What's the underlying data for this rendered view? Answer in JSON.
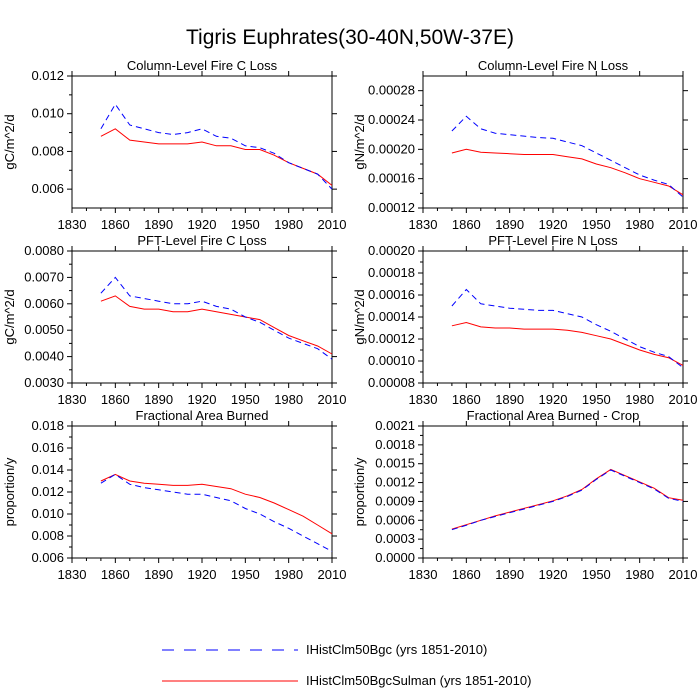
{
  "figure": {
    "title": "Tigris Euphrates(30-40N,50W-37E)"
  },
  "legend": {
    "entries": [
      {
        "label": "IHistClm50Bgc (yrs 1851-2010)",
        "color": "#0000ff",
        "dash": "dashed"
      },
      {
        "label": "IHistClm50BgcSulman (yrs 1851-2010)",
        "color": "#ff0000",
        "dash": "solid"
      }
    ]
  },
  "chart_data": [
    {
      "type": "line",
      "title": "Column-Level Fire C Loss",
      "ylabel": "gC/m^2/d",
      "xlim": [
        1830,
        2010
      ],
      "ylim": [
        0.005,
        0.012
      ],
      "xticks": [
        "1830",
        "1860",
        "1890",
        "1920",
        "1950",
        "1980",
        "2010"
      ],
      "yticks": [
        "0.006",
        "0.008",
        "0.010",
        "0.012"
      ],
      "series": [
        {
          "name": "IHistClm50Bgc (yrs 1851-2010)",
          "color": "#0000ff",
          "x": [
            1850,
            1860,
            1870,
            1880,
            1890,
            1900,
            1910,
            1920,
            1930,
            1940,
            1950,
            1960,
            1970,
            1980,
            1990,
            2000,
            2010
          ],
          "y": [
            0.0092,
            0.0105,
            0.0094,
            0.0092,
            0.009,
            0.0089,
            0.009,
            0.0092,
            0.0088,
            0.0087,
            0.0083,
            0.0082,
            0.0079,
            0.0074,
            0.0071,
            0.0068,
            0.006
          ]
        },
        {
          "name": "IHistClm50BgcSulman (yrs 1851-2010)",
          "color": "#ff0000",
          "x": [
            1850,
            1860,
            1870,
            1880,
            1890,
            1900,
            1910,
            1920,
            1930,
            1940,
            1950,
            1960,
            1970,
            1980,
            1990,
            2000,
            2010
          ],
          "y": [
            0.0088,
            0.0092,
            0.0086,
            0.0085,
            0.0084,
            0.0084,
            0.0084,
            0.0085,
            0.0083,
            0.0083,
            0.0081,
            0.0081,
            0.0078,
            0.0074,
            0.0071,
            0.0068,
            0.0062
          ]
        }
      ]
    },
    {
      "type": "line",
      "title": "Column-Level Fire N Loss",
      "ylabel": "gN/m^2/d",
      "xlim": [
        1830,
        2010
      ],
      "ylim": [
        0.00012,
        0.0003
      ],
      "xticks": [
        "1830",
        "1860",
        "1890",
        "1920",
        "1950",
        "1980",
        "2010"
      ],
      "yticks": [
        "0.00012",
        "0.00016",
        "0.00020",
        "0.00024",
        "0.00028"
      ],
      "series": [
        {
          "name": "IHistClm50Bgc (yrs 1851-2010)",
          "color": "#0000ff",
          "x": [
            1850,
            1860,
            1870,
            1880,
            1890,
            1900,
            1910,
            1920,
            1930,
            1940,
            1950,
            1960,
            1970,
            1980,
            1990,
            2000,
            2010
          ],
          "y": [
            0.000225,
            0.000245,
            0.000228,
            0.000222,
            0.00022,
            0.000218,
            0.000216,
            0.000215,
            0.00021,
            0.000205,
            0.000195,
            0.000185,
            0.000175,
            0.000165,
            0.000158,
            0.000152,
            0.000135
          ]
        },
        {
          "name": "IHistClm50BgcSulman (yrs 1851-2010)",
          "color": "#ff0000",
          "x": [
            1850,
            1860,
            1870,
            1880,
            1890,
            1900,
            1910,
            1920,
            1930,
            1940,
            1950,
            1960,
            1970,
            1980,
            1990,
            2000,
            2010
          ],
          "y": [
            0.000195,
            0.0002,
            0.000196,
            0.000195,
            0.000194,
            0.000193,
            0.000193,
            0.000193,
            0.00019,
            0.000187,
            0.00018,
            0.000175,
            0.000168,
            0.00016,
            0.000155,
            0.00015,
            0.000138
          ]
        }
      ]
    },
    {
      "type": "line",
      "title": "PFT-Level Fire C Loss",
      "ylabel": "gC/m^2/d",
      "xlim": [
        1830,
        2010
      ],
      "ylim": [
        0.003,
        0.008
      ],
      "xticks": [
        "1830",
        "1860",
        "1890",
        "1920",
        "1950",
        "1980",
        "2010"
      ],
      "yticks": [
        "0.0030",
        "0.0040",
        "0.0050",
        "0.0060",
        "0.0070",
        "0.0080"
      ],
      "series": [
        {
          "name": "IHistClm50Bgc (yrs 1851-2010)",
          "color": "#0000ff",
          "x": [
            1850,
            1860,
            1870,
            1880,
            1890,
            1900,
            1910,
            1920,
            1930,
            1940,
            1950,
            1960,
            1970,
            1980,
            1990,
            2000,
            2010
          ],
          "y": [
            0.0064,
            0.007,
            0.0063,
            0.0062,
            0.0061,
            0.006,
            0.006,
            0.0061,
            0.0059,
            0.0058,
            0.0055,
            0.0053,
            0.005,
            0.0047,
            0.0045,
            0.0043,
            0.0039
          ]
        },
        {
          "name": "IHistClm50BgcSulman (yrs 1851-2010)",
          "color": "#ff0000",
          "x": [
            1850,
            1860,
            1870,
            1880,
            1890,
            1900,
            1910,
            1920,
            1930,
            1940,
            1950,
            1960,
            1970,
            1980,
            1990,
            2000,
            2010
          ],
          "y": [
            0.0061,
            0.0063,
            0.0059,
            0.0058,
            0.0058,
            0.0057,
            0.0057,
            0.0058,
            0.0057,
            0.0056,
            0.0055,
            0.0054,
            0.0051,
            0.0048,
            0.0046,
            0.0044,
            0.0041
          ]
        }
      ]
    },
    {
      "type": "line",
      "title": "PFT-Level Fire N Loss",
      "ylabel": "gN/m^2/d",
      "xlim": [
        1830,
        2010
      ],
      "ylim": [
        8e-05,
        0.0002
      ],
      "xticks": [
        "1830",
        "1860",
        "1890",
        "1920",
        "1950",
        "1980",
        "2010"
      ],
      "yticks": [
        "0.00008",
        "0.00010",
        "0.00012",
        "0.00014",
        "0.00016",
        "0.00018",
        "0.00020"
      ],
      "series": [
        {
          "name": "IHistClm50Bgc (yrs 1851-2010)",
          "color": "#0000ff",
          "x": [
            1850,
            1860,
            1870,
            1880,
            1890,
            1900,
            1910,
            1920,
            1930,
            1940,
            1950,
            1960,
            1970,
            1980,
            1990,
            2000,
            2010
          ],
          "y": [
            0.00015,
            0.000165,
            0.000152,
            0.00015,
            0.000148,
            0.000147,
            0.000146,
            0.000146,
            0.000143,
            0.00014,
            0.000133,
            0.000127,
            0.00012,
            0.000113,
            0.000108,
            0.000104,
            9.4e-05
          ]
        },
        {
          "name": "IHistClm50BgcSulman (yrs 1851-2010)",
          "color": "#ff0000",
          "x": [
            1850,
            1860,
            1870,
            1880,
            1890,
            1900,
            1910,
            1920,
            1930,
            1940,
            1950,
            1960,
            1970,
            1980,
            1990,
            2000,
            2010
          ],
          "y": [
            0.000132,
            0.000135,
            0.000131,
            0.00013,
            0.00013,
            0.000129,
            0.000129,
            0.000129,
            0.000128,
            0.000126,
            0.000123,
            0.00012,
            0.000115,
            0.00011,
            0.000106,
            0.000103,
            9.6e-05
          ]
        }
      ]
    },
    {
      "type": "line",
      "title": "Fractional Area Burned",
      "ylabel": "proportion/y",
      "xlim": [
        1830,
        2010
      ],
      "ylim": [
        0.006,
        0.018
      ],
      "xticks": [
        "1830",
        "1860",
        "1890",
        "1920",
        "1950",
        "1980",
        "2010"
      ],
      "yticks": [
        "0.006",
        "0.008",
        "0.010",
        "0.012",
        "0.014",
        "0.016",
        "0.018"
      ],
      "series": [
        {
          "name": "IHistClm50Bgc (yrs 1851-2010)",
          "color": "#0000ff",
          "x": [
            1850,
            1860,
            1870,
            1880,
            1890,
            1900,
            1910,
            1920,
            1930,
            1940,
            1950,
            1960,
            1970,
            1980,
            1990,
            2000,
            2010
          ],
          "y": [
            0.0128,
            0.0136,
            0.0127,
            0.0124,
            0.0122,
            0.012,
            0.0118,
            0.0118,
            0.0115,
            0.0112,
            0.0105,
            0.01,
            0.0093,
            0.0087,
            0.008,
            0.0073,
            0.0066
          ]
        },
        {
          "name": "IHistClm50BgcSulman (yrs 1851-2010)",
          "color": "#ff0000",
          "x": [
            1850,
            1860,
            1870,
            1880,
            1890,
            1900,
            1910,
            1920,
            1930,
            1940,
            1950,
            1960,
            1970,
            1980,
            1990,
            2000,
            2010
          ],
          "y": [
            0.013,
            0.0136,
            0.013,
            0.0128,
            0.0127,
            0.0126,
            0.0126,
            0.0127,
            0.0125,
            0.0123,
            0.0118,
            0.0115,
            0.011,
            0.0104,
            0.0098,
            0.009,
            0.0082
          ]
        }
      ]
    },
    {
      "type": "line",
      "title": "Fractional Area Burned - Crop",
      "ylabel": "proportion/y",
      "xlim": [
        1830,
        2010
      ],
      "ylim": [
        0.0,
        0.0021
      ],
      "xticks": [
        "1830",
        "1860",
        "1890",
        "1920",
        "1950",
        "1980",
        "2010"
      ],
      "yticks": [
        "0.0000",
        "0.0003",
        "0.0006",
        "0.0009",
        "0.0012",
        "0.0015",
        "0.0018",
        "0.0021"
      ],
      "series": [
        {
          "name": "IHistClm50Bgc (yrs 1851-2010)",
          "color": "#0000ff",
          "x": [
            1850,
            1860,
            1870,
            1880,
            1890,
            1900,
            1910,
            1920,
            1930,
            1940,
            1950,
            1960,
            1970,
            1980,
            1990,
            2000,
            2010
          ],
          "y": [
            0.00045,
            0.00052,
            0.0006,
            0.00066,
            0.00072,
            0.00078,
            0.00084,
            0.0009,
            0.00098,
            0.00108,
            0.00125,
            0.0014,
            0.0013,
            0.0012,
            0.0011,
            0.00095,
            0.0009
          ]
        },
        {
          "name": "IHistClm50BgcSulman (yrs 1851-2010)",
          "color": "#ff0000",
          "x": [
            1850,
            1860,
            1870,
            1880,
            1890,
            1900,
            1910,
            1920,
            1930,
            1940,
            1950,
            1960,
            1970,
            1980,
            1990,
            2000,
            2010
          ],
          "y": [
            0.00046,
            0.00053,
            0.0006,
            0.00067,
            0.00073,
            0.00079,
            0.00085,
            0.00091,
            0.00099,
            0.00109,
            0.00126,
            0.00141,
            0.00131,
            0.00121,
            0.00111,
            0.00096,
            0.00092
          ]
        }
      ]
    }
  ]
}
